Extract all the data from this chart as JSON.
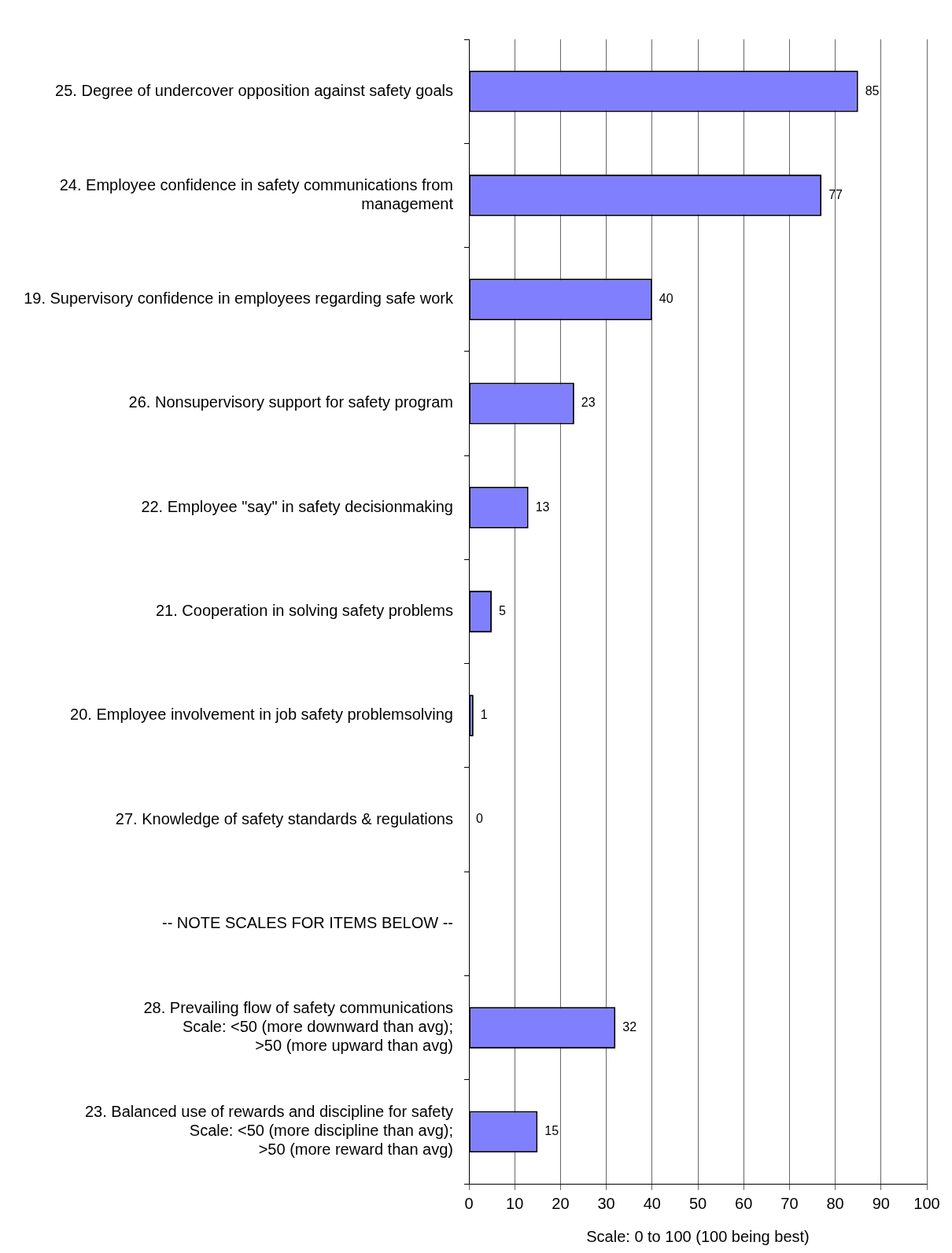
{
  "chart_data": {
    "type": "bar",
    "orientation": "horizontal",
    "categories": [
      "25. Degree of undercover opposition against safety goals",
      "24. Employee confidence in safety communications from management",
      "19. Supervisory confidence in employees regarding safe work",
      "26. Nonsupervisory support for safety program",
      "22. Employee \"say\" in safety decisionmaking",
      "21. Cooperation in solving safety problems",
      "20. Employee involvement in job safety problemsolving",
      "27. Knowledge of safety standards & regulations",
      "-- NOTE SCALES FOR ITEMS BELOW --",
      "28. Prevailing flow of safety communications\nScale: <50 (more downward than avg);\n>50 (more upward than avg)",
      "23. Balanced use of rewards and discipline for safety\nScale: <50 (more discipline than avg);\n>50 (more reward than avg)"
    ],
    "values": [
      85,
      77,
      40,
      23,
      13,
      5,
      1,
      0,
      null,
      32,
      15
    ],
    "color": "#8080ff",
    "xlim": [
      0,
      100
    ],
    "xticks": [
      0,
      10,
      20,
      30,
      40,
      50,
      60,
      70,
      80,
      90,
      100
    ],
    "xlabel": "Scale: 0 to 100 (100 being best)",
    "grid": "x",
    "data_labels": true,
    "legend": false
  }
}
